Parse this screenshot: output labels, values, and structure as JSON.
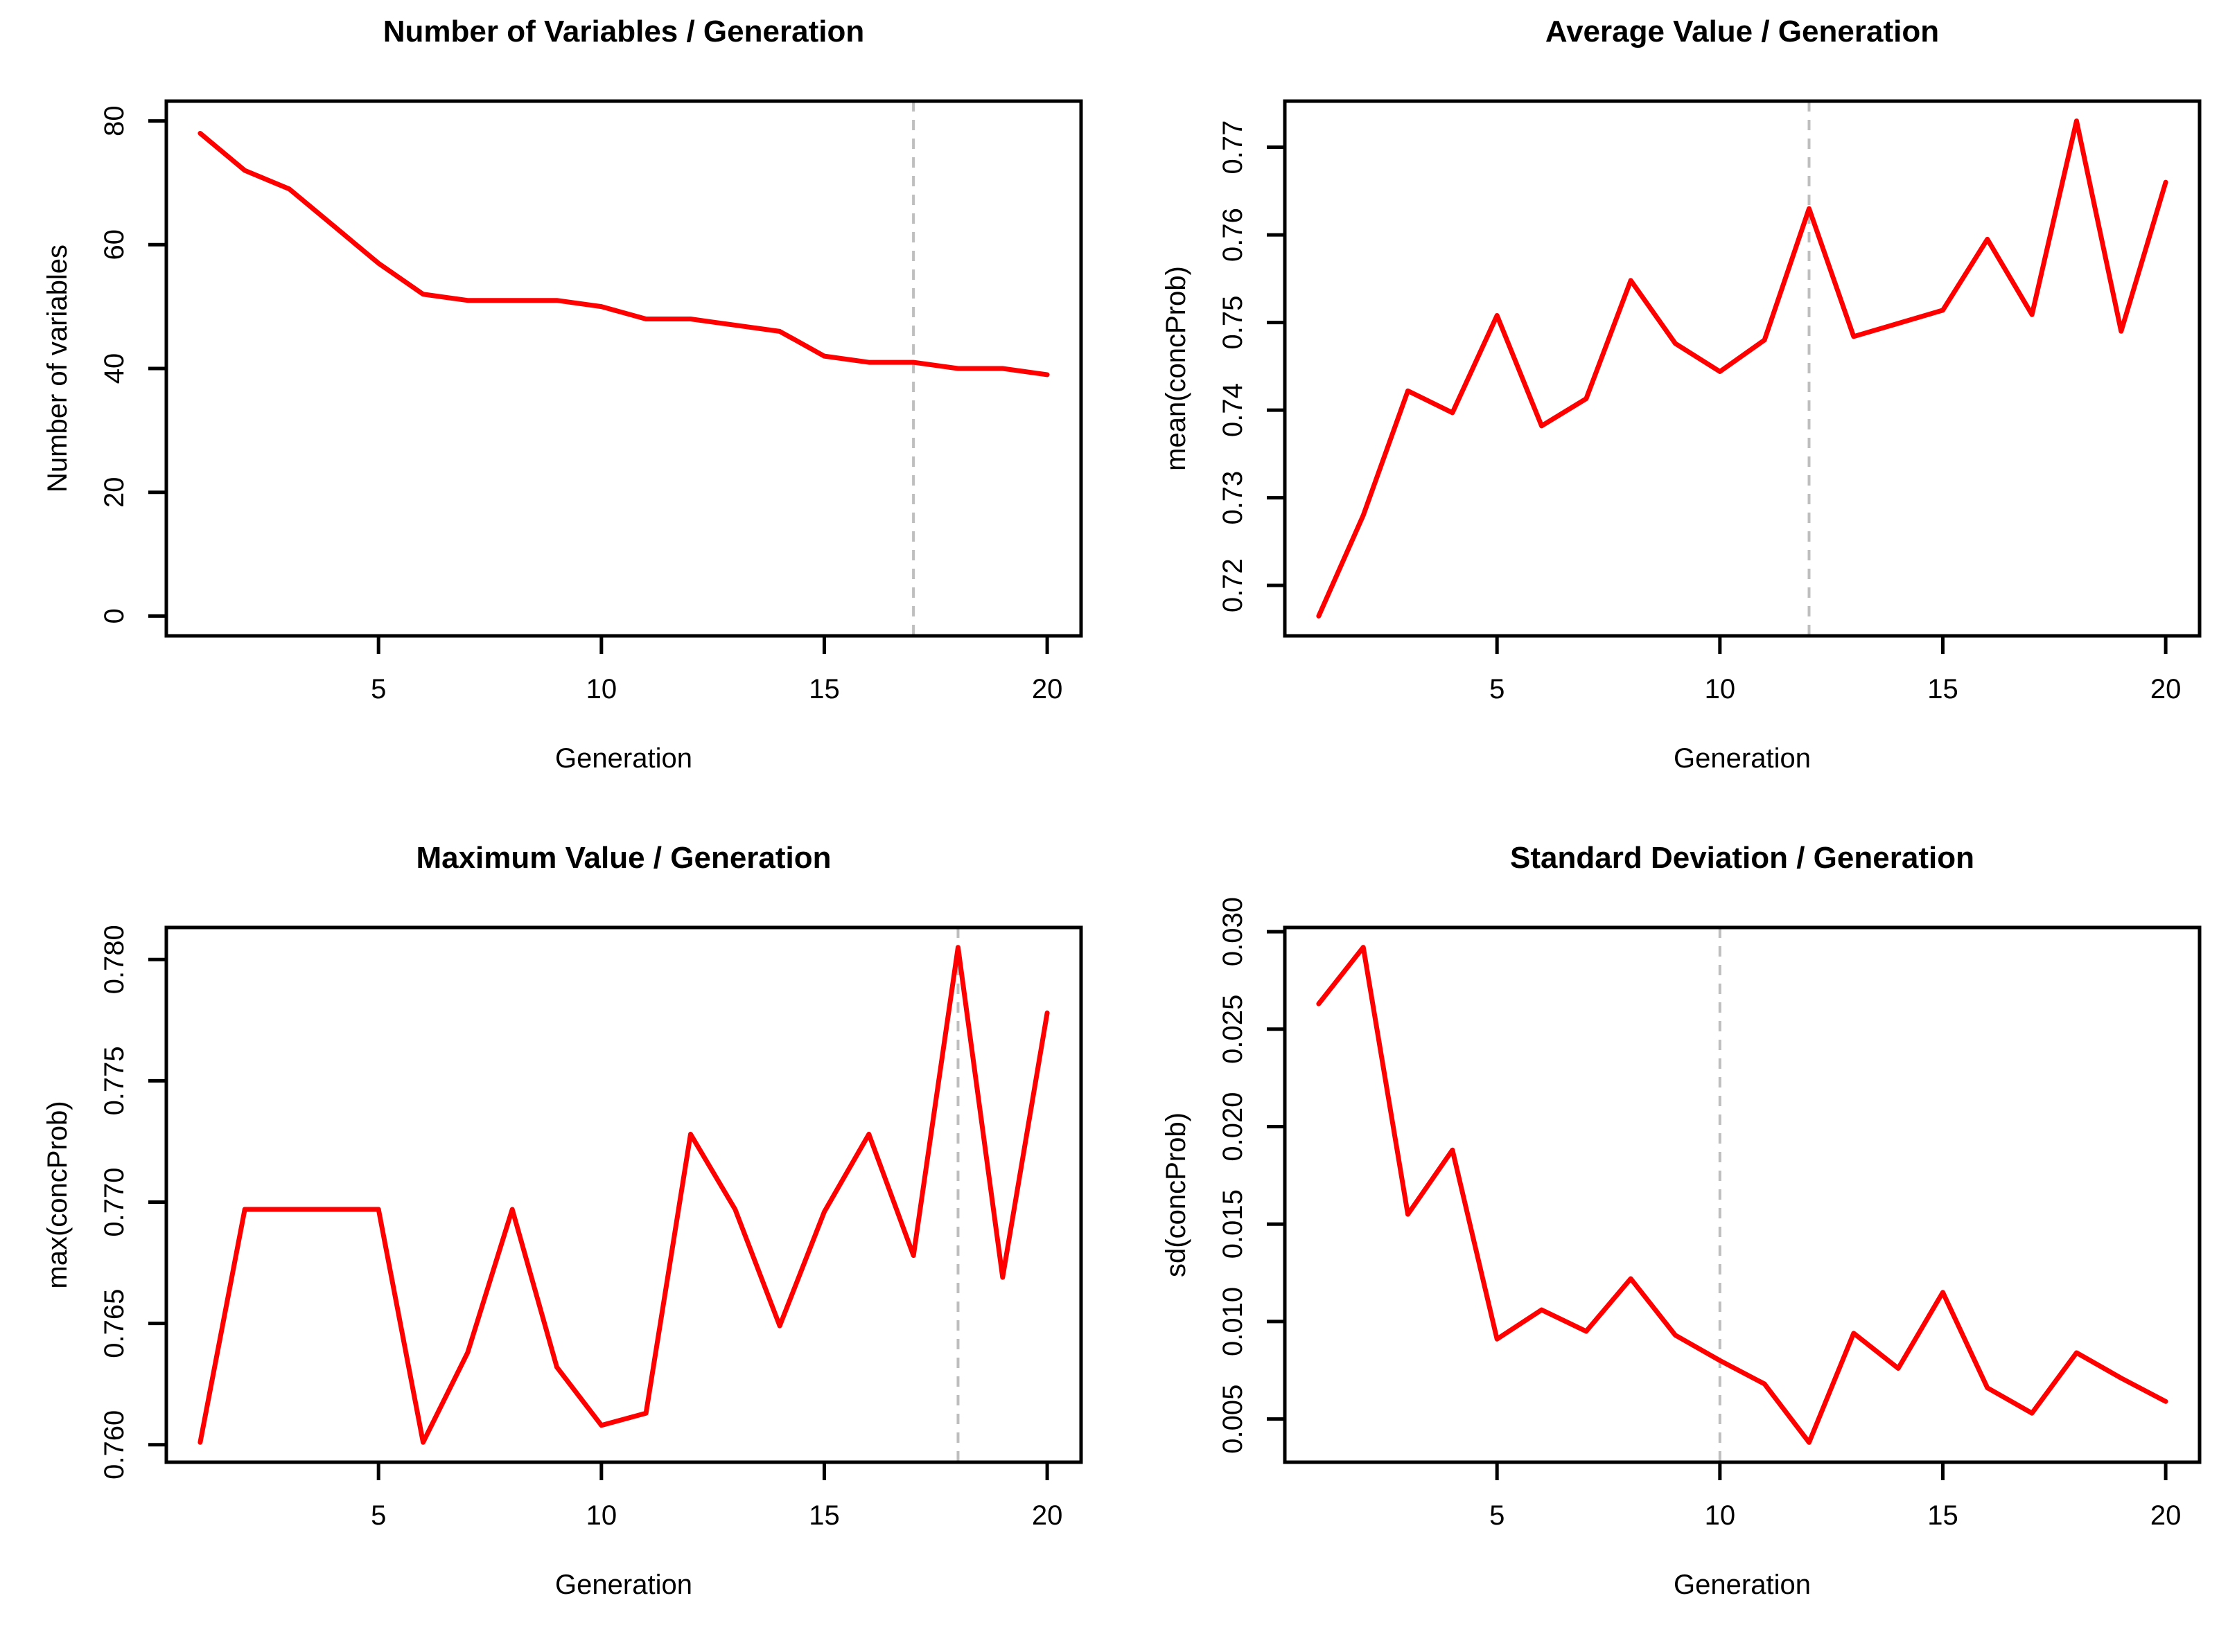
{
  "page": {
    "background": "#FFFFFF",
    "text_color": "#000000",
    "accent_color": "#FF0000",
    "vline_color": "#BEBEBE"
  },
  "chart_data": [
    {
      "type": "line",
      "title": "Number of Variables / Generation",
      "xlabel": "Generation",
      "ylabel": "Number of variables",
      "x": [
        1,
        2,
        3,
        4,
        5,
        6,
        7,
        8,
        9,
        10,
        11,
        12,
        13,
        14,
        15,
        16,
        17,
        18,
        19,
        20
      ],
      "values": [
        78,
        72,
        69,
        63,
        57,
        52,
        51,
        51,
        51,
        50,
        48,
        48,
        47,
        46,
        42,
        41,
        41,
        40,
        40,
        39
      ],
      "xlim": [
        0.24,
        20.76
      ],
      "ylim": [
        -3.2,
        83.2
      ],
      "xticks": [
        5,
        10,
        15,
        20
      ],
      "xticklabels": [
        "5",
        "10",
        "15",
        "20"
      ],
      "yticks": [
        0,
        20,
        40,
        60,
        80
      ],
      "yticklabels": [
        "0",
        "20",
        "40",
        "60",
        "80"
      ],
      "vline_x": 17,
      "line_color": "#FF0000",
      "vline_color": "#BEBEBE",
      "grid": false,
      "legend": null
    },
    {
      "type": "line",
      "title": "Average Value / Generation",
      "xlabel": "Generation",
      "ylabel": "mean(concProb)",
      "x": [
        1,
        2,
        3,
        4,
        5,
        6,
        7,
        8,
        9,
        10,
        11,
        12,
        13,
        14,
        15,
        16,
        17,
        18,
        19,
        20
      ],
      "values": [
        0.7165,
        0.728,
        0.7422,
        0.7397,
        0.7508,
        0.7382,
        0.7413,
        0.7548,
        0.7476,
        0.7444,
        0.748,
        0.763,
        0.7484,
        0.7499,
        0.7514,
        0.7595,
        0.7509,
        0.773,
        0.749,
        0.766
      ],
      "xlim": [
        0.24,
        20.76
      ],
      "ylim": [
        0.71424,
        0.77526
      ],
      "xticks": [
        5,
        10,
        15,
        20
      ],
      "xticklabels": [
        "5",
        "10",
        "15",
        "20"
      ],
      "yticks": [
        0.72,
        0.73,
        0.74,
        0.75,
        0.76,
        0.77
      ],
      "yticklabels": [
        "0.72",
        "0.73",
        "0.74",
        "0.75",
        "0.76",
        "0.77"
      ],
      "vline_x": 12,
      "line_color": "#FF0000",
      "vline_color": "#BEBEBE",
      "grid": false,
      "legend": null
    },
    {
      "type": "line",
      "title": "Maximum Value / Generation",
      "xlabel": "Generation",
      "ylabel": "max(concProb)",
      "x": [
        1,
        2,
        3,
        4,
        5,
        6,
        7,
        8,
        9,
        10,
        11,
        12,
        13,
        14,
        15,
        16,
        17,
        18,
        19,
        20
      ],
      "values": [
        0.7601,
        0.7697,
        0.7697,
        0.7697,
        0.7697,
        0.7601,
        0.7638,
        0.7697,
        0.7632,
        0.7608,
        0.7613,
        0.7728,
        0.7697,
        0.7649,
        0.7696,
        0.7728,
        0.7678,
        0.7805,
        0.7669,
        0.7778
      ],
      "xlim": [
        0.24,
        20.76
      ],
      "ylim": [
        0.75928,
        0.78132
      ],
      "xticks": [
        5,
        10,
        15,
        20
      ],
      "xticklabels": [
        "5",
        "10",
        "15",
        "20"
      ],
      "yticks": [
        0.76,
        0.765,
        0.77,
        0.775,
        0.78
      ],
      "yticklabels": [
        "0.760",
        "0.765",
        "0.770",
        "0.775",
        "0.780"
      ],
      "vline_x": 18,
      "line_color": "#FF0000",
      "vline_color": "#BEBEBE",
      "grid": false,
      "legend": null
    },
    {
      "type": "line",
      "title": "Standard Deviation / Generation",
      "xlabel": "Generation",
      "ylabel": "sd(concProb)",
      "x": [
        1,
        2,
        3,
        4,
        5,
        6,
        7,
        8,
        9,
        10,
        11,
        12,
        13,
        14,
        15,
        16,
        17,
        18,
        19,
        20
      ],
      "values": [
        0.0263,
        0.0292,
        0.0155,
        0.0188,
        0.0091,
        0.0106,
        0.0095,
        0.0122,
        0.0093,
        0.008,
        0.0068,
        0.0038,
        0.0094,
        0.0076,
        0.0115,
        0.0066,
        0.0053,
        0.0084,
        0.0071,
        0.0059
      ],
      "xlim": [
        0.24,
        20.76
      ],
      "ylim": [
        0.002784,
        0.030216
      ],
      "xticks": [
        5,
        10,
        15,
        20
      ],
      "xticklabels": [
        "5",
        "10",
        "15",
        "20"
      ],
      "yticks": [
        0.005,
        0.01,
        0.015,
        0.02,
        0.025,
        0.03
      ],
      "yticklabels": [
        "0.005",
        "0.010",
        "0.015",
        "0.020",
        "0.025",
        "0.030"
      ],
      "vline_x": 10,
      "line_color": "#FF0000",
      "vline_color": "#BEBEBE",
      "grid": false,
      "legend": null
    }
  ]
}
